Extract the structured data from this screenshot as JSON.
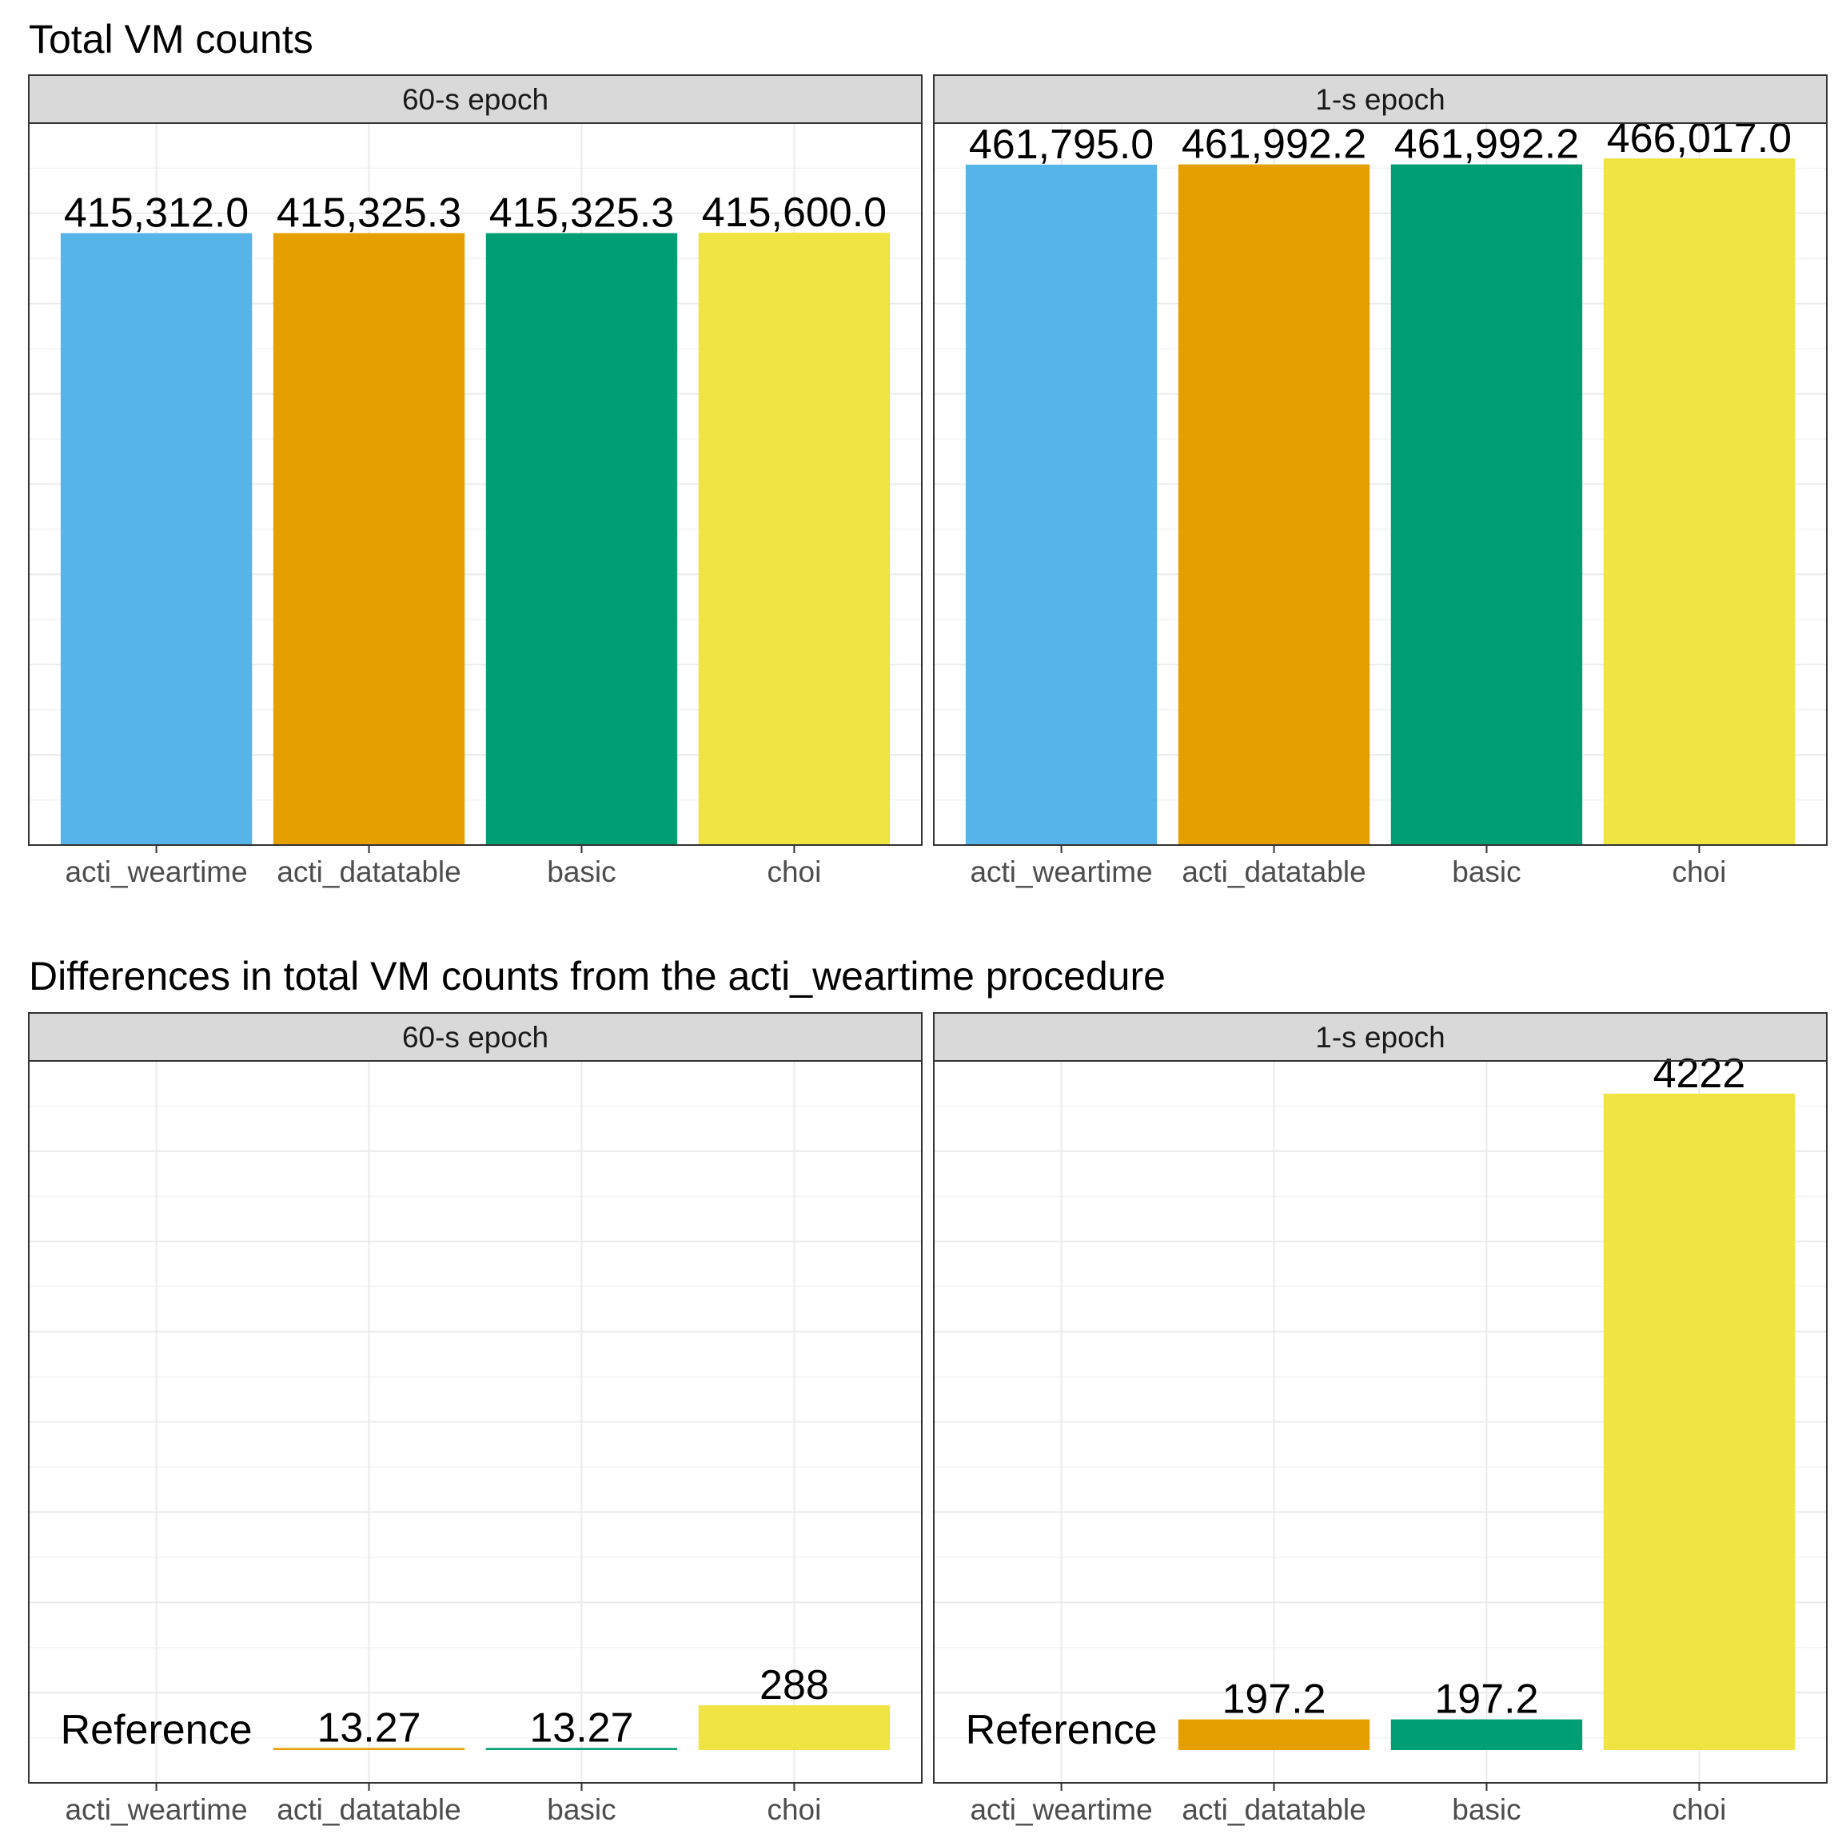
{
  "colors": {
    "acti_weartime": "#56B4E9",
    "acti_datatable": "#E69F00",
    "basic": "#009E73",
    "choi": "#F0E442"
  },
  "chart_data": [
    {
      "type": "bar",
      "title": "Total VM counts",
      "facets": [
        {
          "strip": "60-s epoch",
          "categories": [
            "acti_weartime",
            "acti_datatable",
            "basic",
            "choi"
          ],
          "values": [
            415312.0,
            415325.3,
            415325.3,
            415600.0
          ],
          "labels": [
            "415,312.0",
            "415,325.3",
            "415,325.3",
            "415,600.0"
          ]
        },
        {
          "strip": "1-s epoch",
          "categories": [
            "acti_weartime",
            "acti_datatable",
            "basic",
            "choi"
          ],
          "values": [
            461795.0,
            461992.2,
            461992.2,
            466017.0
          ],
          "labels": [
            "461,795.0",
            "461,992.2",
            "461,992.2",
            "466,017.0"
          ]
        }
      ],
      "ylim": [
        0,
        490000
      ],
      "y_axis_labels_shown": false,
      "grid": true
    },
    {
      "type": "bar",
      "title": "Differences in total VM counts from the acti_weartime procedure",
      "facets": [
        {
          "strip": "60-s epoch",
          "categories": [
            "acti_weartime",
            "acti_datatable",
            "basic",
            "choi"
          ],
          "values": [
            0,
            13.27,
            13.27,
            288
          ],
          "labels": [
            "Reference",
            "13.27",
            "13.27",
            "288"
          ]
        },
        {
          "strip": "1-s epoch",
          "categories": [
            "acti_weartime",
            "acti_datatable",
            "basic",
            "choi"
          ],
          "values": [
            0,
            197.2,
            197.2,
            4222
          ],
          "labels": [
            "Reference",
            "197.2",
            "197.2",
            "4222"
          ]
        }
      ],
      "ylim": [
        -211,
        4433
      ],
      "y_axis_labels_shown": false,
      "grid": true
    }
  ]
}
